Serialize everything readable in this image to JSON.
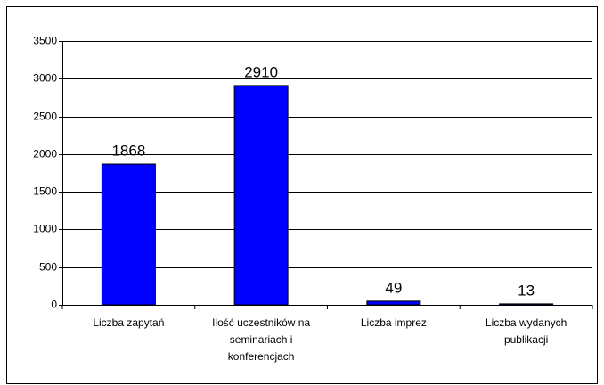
{
  "chart_data": {
    "type": "bar",
    "categories": [
      "Liczba zapytań",
      "Ilość uczestników na seminariach i konferencjach",
      "Liczba imprez",
      "Liczba wydanych publikacji"
    ],
    "values": [
      1868,
      2910,
      49,
      13
    ],
    "color": "#0000ff",
    "ylim": [
      0,
      3500
    ],
    "yticks": [
      0,
      500,
      1000,
      1500,
      2000,
      2500,
      3000,
      3500
    ],
    "grid": true
  }
}
